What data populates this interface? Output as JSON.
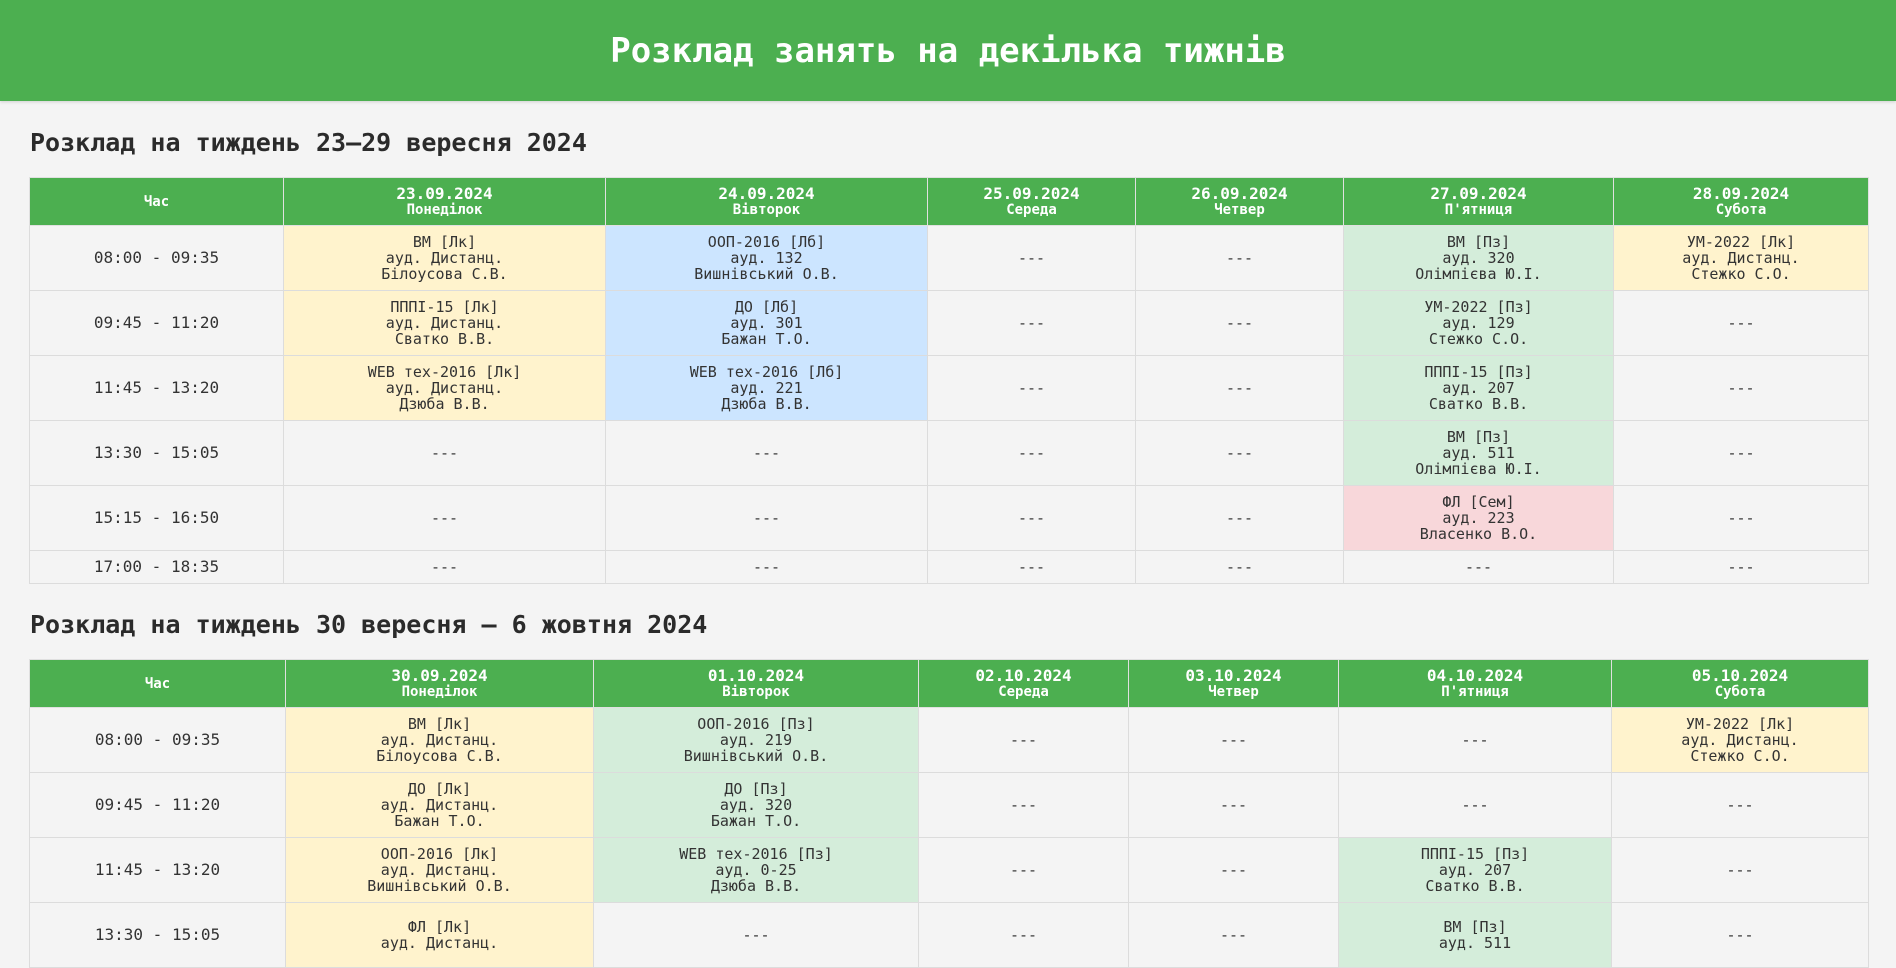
{
  "page_title": "Розклад занять на декілька тижнів",
  "colors": {
    "header": "#4caf50",
    "lecture": "#fff3cd",
    "lab": "#cce5ff",
    "practice": "#d4edda",
    "seminar": "#f8d7da"
  },
  "weeks": [
    {
      "title": "Розклад на тиждень 23–29 вересня 2024",
      "time_header": "Час",
      "days": [
        {
          "date": "23.09.2024",
          "name": "Понеділок"
        },
        {
          "date": "24.09.2024",
          "name": "Вівторок"
        },
        {
          "date": "25.09.2024",
          "name": "Середа"
        },
        {
          "date": "26.09.2024",
          "name": "Четвер"
        },
        {
          "date": "27.09.2024",
          "name": "П'ятниця"
        },
        {
          "date": "28.09.2024",
          "name": "Субота"
        }
      ],
      "rows": [
        {
          "time": "08:00 - 09:35",
          "cells": [
            {
              "type": "lk",
              "lines": [
                "ВМ [Лк]",
                "ауд. Дистанц.",
                "Білоусова С.В."
              ]
            },
            {
              "type": "lb",
              "lines": [
                "ООП-2016 [Лб]",
                "ауд. 132",
                "Вишнівський О.В."
              ]
            },
            {
              "type": "empty",
              "lines": [
                "---"
              ]
            },
            {
              "type": "empty",
              "lines": [
                "---"
              ]
            },
            {
              "type": "pz",
              "lines": [
                "ВМ [Пз]",
                "ауд. 320",
                "Олімпієва Ю.І."
              ]
            },
            {
              "type": "lk",
              "lines": [
                "УМ-2022 [Лк]",
                "ауд. Дистанц.",
                "Стежко С.О."
              ]
            }
          ]
        },
        {
          "time": "09:45 - 11:20",
          "cells": [
            {
              "type": "lk",
              "lines": [
                "ПППІ-15 [Лк]",
                "ауд. Дистанц.",
                "Сватко В.В."
              ]
            },
            {
              "type": "lb",
              "lines": [
                "ДО [Лб]",
                "ауд. 301",
                "Бажан Т.О."
              ]
            },
            {
              "type": "empty",
              "lines": [
                "---"
              ]
            },
            {
              "type": "empty",
              "lines": [
                "---"
              ]
            },
            {
              "type": "pz",
              "lines": [
                "УМ-2022 [Пз]",
                "ауд. 129",
                "Стежко С.О."
              ]
            },
            {
              "type": "empty",
              "lines": [
                "---"
              ]
            }
          ]
        },
        {
          "time": "11:45 - 13:20",
          "cells": [
            {
              "type": "lk",
              "lines": [
                "WEB тех-2016 [Лк]",
                "ауд. Дистанц.",
                "Дзюба В.В."
              ]
            },
            {
              "type": "lb",
              "lines": [
                "WEB тех-2016 [Лб]",
                "ауд. 221",
                "Дзюба В.В."
              ]
            },
            {
              "type": "empty",
              "lines": [
                "---"
              ]
            },
            {
              "type": "empty",
              "lines": [
                "---"
              ]
            },
            {
              "type": "pz",
              "lines": [
                "ПППІ-15 [Пз]",
                "ауд. 207",
                "Сватко В.В."
              ]
            },
            {
              "type": "empty",
              "lines": [
                "---"
              ]
            }
          ]
        },
        {
          "time": "13:30 - 15:05",
          "cells": [
            {
              "type": "empty",
              "lines": [
                "---"
              ]
            },
            {
              "type": "empty",
              "lines": [
                "---"
              ]
            },
            {
              "type": "empty",
              "lines": [
                "---"
              ]
            },
            {
              "type": "empty",
              "lines": [
                "---"
              ]
            },
            {
              "type": "pz",
              "lines": [
                "ВМ [Пз]",
                "ауд. 511",
                "Олімпієва Ю.І."
              ]
            },
            {
              "type": "empty",
              "lines": [
                "---"
              ]
            }
          ]
        },
        {
          "time": "15:15 - 16:50",
          "cells": [
            {
              "type": "empty",
              "lines": [
                "---"
              ]
            },
            {
              "type": "empty",
              "lines": [
                "---"
              ]
            },
            {
              "type": "empty",
              "lines": [
                "---"
              ]
            },
            {
              "type": "empty",
              "lines": [
                "---"
              ]
            },
            {
              "type": "sem",
              "lines": [
                "ФЛ [Сем]",
                "ауд. 223",
                "Власенко В.О."
              ]
            },
            {
              "type": "empty",
              "lines": [
                "---"
              ]
            }
          ]
        },
        {
          "time": "17:00 - 18:35",
          "short": true,
          "cells": [
            {
              "type": "empty",
              "lines": [
                "---"
              ]
            },
            {
              "type": "empty",
              "lines": [
                "---"
              ]
            },
            {
              "type": "empty",
              "lines": [
                "---"
              ]
            },
            {
              "type": "empty",
              "lines": [
                "---"
              ]
            },
            {
              "type": "empty",
              "lines": [
                "---"
              ]
            },
            {
              "type": "empty",
              "lines": [
                "---"
              ]
            }
          ]
        }
      ]
    },
    {
      "title": "Розклад на тиждень 30 вересня – 6 жовтня 2024",
      "time_header": "Час",
      "days": [
        {
          "date": "30.09.2024",
          "name": "Понеділок"
        },
        {
          "date": "01.10.2024",
          "name": "Вівторок"
        },
        {
          "date": "02.10.2024",
          "name": "Середа"
        },
        {
          "date": "03.10.2024",
          "name": "Четвер"
        },
        {
          "date": "04.10.2024",
          "name": "П'ятниця"
        },
        {
          "date": "05.10.2024",
          "name": "Субота"
        }
      ],
      "rows": [
        {
          "time": "08:00 - 09:35",
          "cells": [
            {
              "type": "lk",
              "lines": [
                "ВМ [Лк]",
                "ауд. Дистанц.",
                "Білоусова С.В."
              ]
            },
            {
              "type": "pz",
              "lines": [
                "ООП-2016 [Пз]",
                "ауд. 219",
                "Вишнівський О.В."
              ]
            },
            {
              "type": "empty",
              "lines": [
                "---"
              ]
            },
            {
              "type": "empty",
              "lines": [
                "---"
              ]
            },
            {
              "type": "empty",
              "lines": [
                "---"
              ]
            },
            {
              "type": "lk",
              "lines": [
                "УМ-2022 [Лк]",
                "ауд. Дистанц.",
                "Стежко С.О."
              ]
            }
          ]
        },
        {
          "time": "09:45 - 11:20",
          "cells": [
            {
              "type": "lk",
              "lines": [
                "ДО [Лк]",
                "ауд. Дистанц.",
                "Бажан Т.О."
              ]
            },
            {
              "type": "pz",
              "lines": [
                "ДО [Пз]",
                "ауд. 320",
                "Бажан Т.О."
              ]
            },
            {
              "type": "empty",
              "lines": [
                "---"
              ]
            },
            {
              "type": "empty",
              "lines": [
                "---"
              ]
            },
            {
              "type": "empty",
              "lines": [
                "---"
              ]
            },
            {
              "type": "empty",
              "lines": [
                "---"
              ]
            }
          ]
        },
        {
          "time": "11:45 - 13:20",
          "cells": [
            {
              "type": "lk",
              "lines": [
                "ООП-2016 [Лк]",
                "ауд. Дистанц.",
                "Вишнівський О.В."
              ]
            },
            {
              "type": "pz",
              "lines": [
                "WEB тех-2016 [Пз]",
                "ауд. 0-25",
                "Дзюба В.В."
              ]
            },
            {
              "type": "empty",
              "lines": [
                "---"
              ]
            },
            {
              "type": "empty",
              "lines": [
                "---"
              ]
            },
            {
              "type": "pz",
              "lines": [
                "ПППІ-15 [Пз]",
                "ауд. 207",
                "Сватко В.В."
              ]
            },
            {
              "type": "empty",
              "lines": [
                "---"
              ]
            }
          ]
        },
        {
          "time": "13:30 - 15:05",
          "cells": [
            {
              "type": "lk",
              "lines": [
                "ФЛ [Лк]",
                "ауд. Дистанц."
              ]
            },
            {
              "type": "empty",
              "lines": [
                "---"
              ]
            },
            {
              "type": "empty",
              "lines": [
                "---"
              ]
            },
            {
              "type": "empty",
              "lines": [
                "---"
              ]
            },
            {
              "type": "pz",
              "lines": [
                "ВМ [Пз]",
                "ауд. 511"
              ]
            },
            {
              "type": "empty",
              "lines": [
                "---"
              ]
            }
          ]
        }
      ]
    }
  ]
}
